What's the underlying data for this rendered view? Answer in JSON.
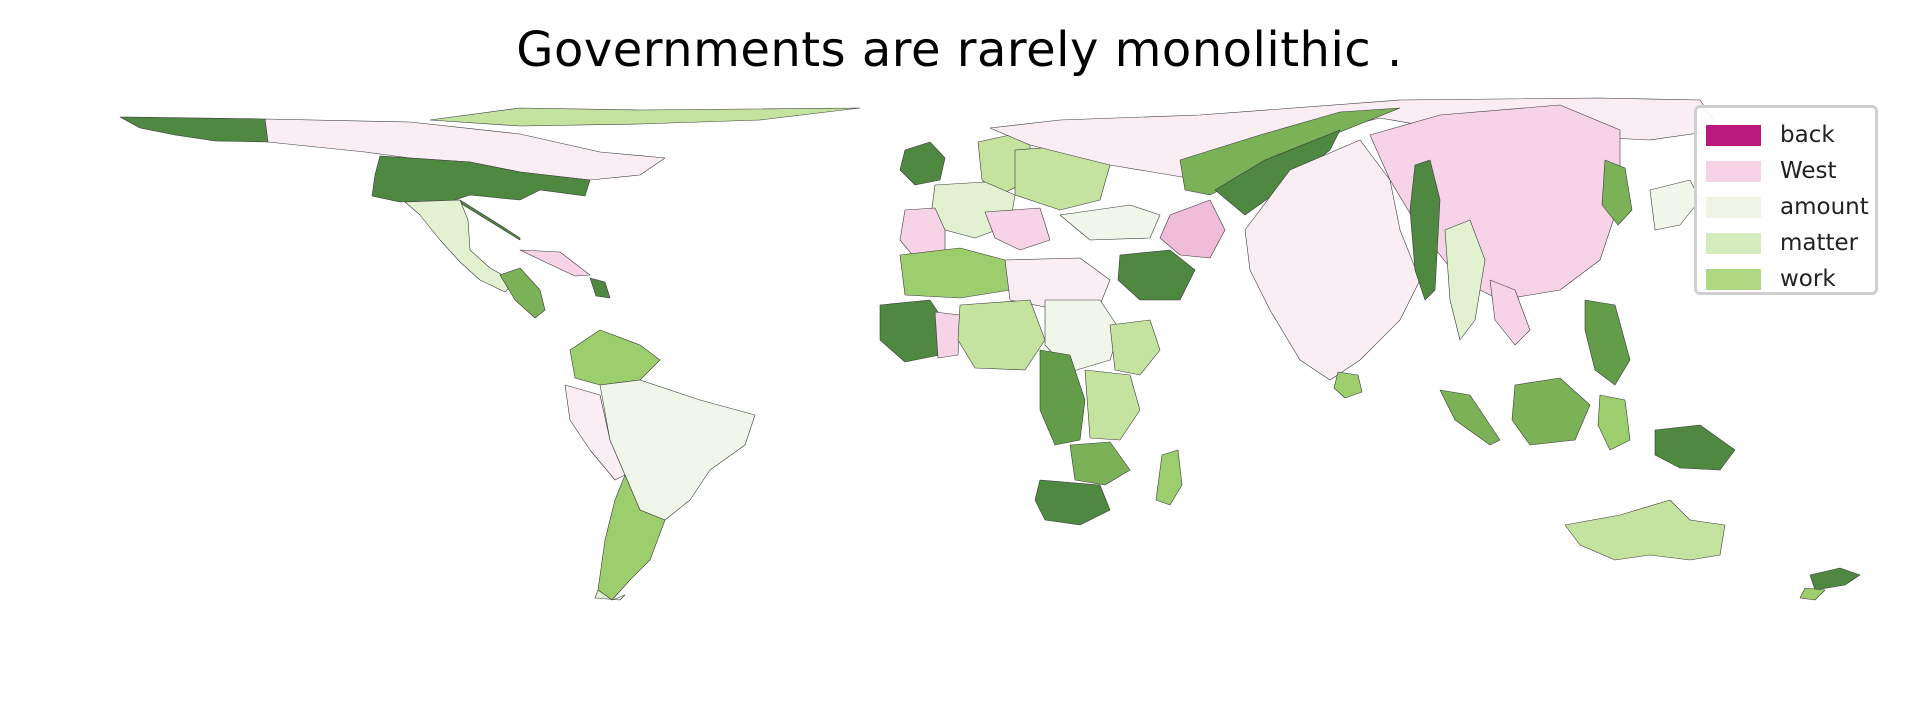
{
  "title": "Governments are rarely monolithic .",
  "legend": {
    "items": [
      {
        "label": "back",
        "color": "#b8197a"
      },
      {
        "label": "West",
        "color": "#f6d3e6"
      },
      {
        "label": "amount",
        "color": "#eff4e6"
      },
      {
        "label": "matter",
        "color": "#d4ecbe"
      },
      {
        "label": "work",
        "color": "#afd882"
      }
    ]
  },
  "palette": {
    "dark_green": "#4f8840",
    "mid_green": "#649d49",
    "green": "#7bb257",
    "light_green": "#9cce6d",
    "pale_green": "#c4e39f",
    "very_pale_green": "#e2f1d0",
    "cream": "#f1f6ea",
    "pale_pink": "#fbedf4",
    "pink": "#f6d3e6",
    "mid_pink": "#f0bcd9"
  }
}
